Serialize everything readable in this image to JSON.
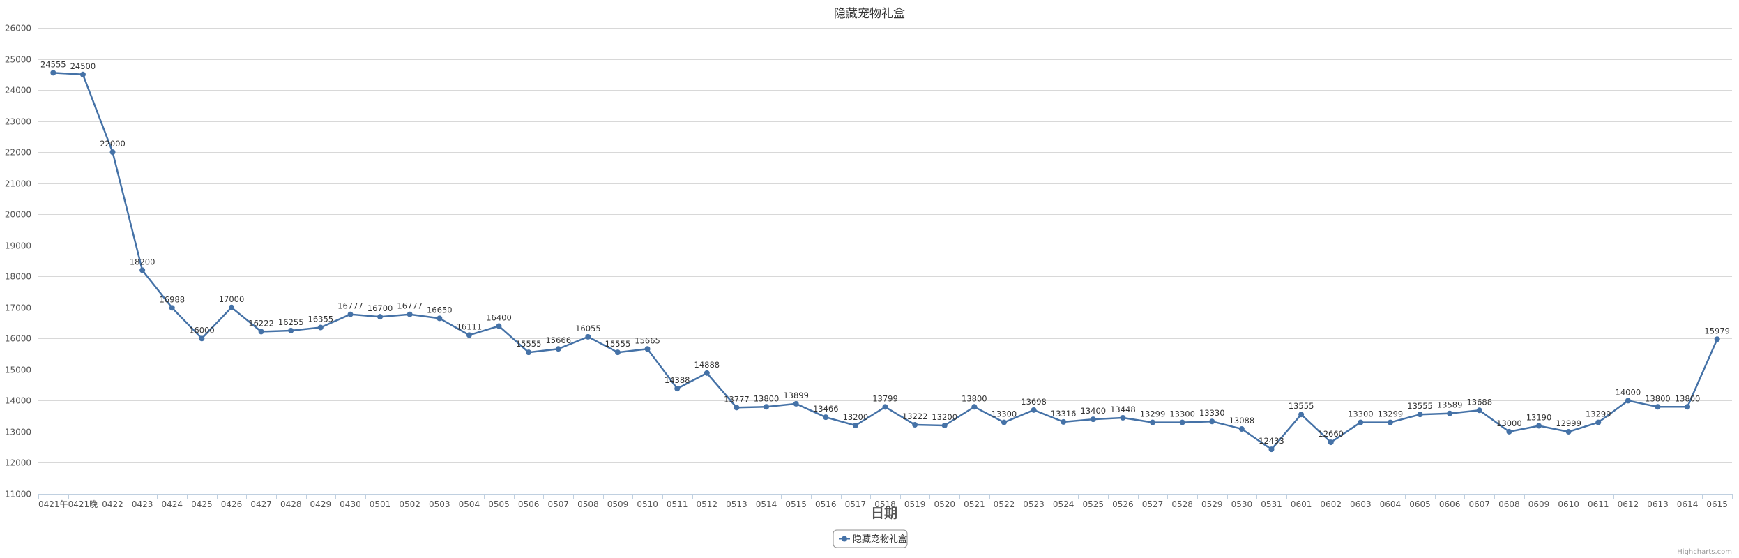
{
  "chart_data": {
    "type": "line",
    "title": "隐藏宠物礼盒",
    "xlabel": "日期",
    "ylabel": "",
    "ylim": [
      11000,
      26000
    ],
    "yticks": [
      11000,
      12000,
      13000,
      14000,
      15000,
      16000,
      17000,
      18000,
      19000,
      20000,
      21000,
      22000,
      23000,
      24000,
      25000,
      26000
    ],
    "grid": true,
    "legend_position": "bottom-center",
    "categories": [
      "0421午",
      "0421晚",
      "0422",
      "0423",
      "0424",
      "0425",
      "0426",
      "0427",
      "0428",
      "0429",
      "0430",
      "0501",
      "0502",
      "0503",
      "0504",
      "0505",
      "0506",
      "0507",
      "0508",
      "0509",
      "0510",
      "0511",
      "0512",
      "0513",
      "0514",
      "0515",
      "0516",
      "0517",
      "0518",
      "0519",
      "0520",
      "0521",
      "0522",
      "0523",
      "0524",
      "0525",
      "0526",
      "0527",
      "0528",
      "0529",
      "0530",
      "0531",
      "0601",
      "0602",
      "0603",
      "0604",
      "0605",
      "0606",
      "0607",
      "0608",
      "0609",
      "0610",
      "0611",
      "0612",
      "0613",
      "0614",
      "0615"
    ],
    "series": [
      {
        "name": "隐藏宠物礼盒",
        "color": "#4572a7",
        "values": [
          24555,
          24500,
          22000,
          18200,
          16988,
          16000,
          17000,
          16222,
          16255,
          16355,
          16777,
          16700,
          16777,
          16650,
          16111,
          16400,
          15555,
          15666,
          16055,
          15555,
          15665,
          14388,
          14888,
          13777,
          13800,
          13899,
          13466,
          13200,
          13799,
          13222,
          13200,
          13800,
          13300,
          13698,
          13316,
          13400,
          13448,
          13299,
          13300,
          13330,
          13088,
          12433,
          13555,
          12660,
          13300,
          13299,
          13555,
          13589,
          13688,
          13000,
          13190,
          12999,
          13299,
          14000,
          13800,
          13800,
          15979
        ]
      }
    ],
    "credits": "Highcharts.com"
  }
}
